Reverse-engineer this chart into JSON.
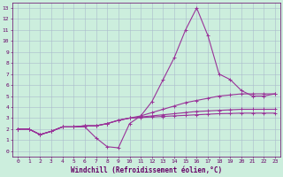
{
  "xlabel": "Windchill (Refroidissement éolien,°C)",
  "bg_color": "#cceedd",
  "grid_color": "#aabbcc",
  "line_color": "#993399",
  "xlim": [
    -0.5,
    23.5
  ],
  "ylim": [
    -0.5,
    13.5
  ],
  "xticks": [
    0,
    1,
    2,
    3,
    4,
    5,
    6,
    7,
    8,
    9,
    10,
    11,
    12,
    13,
    14,
    15,
    16,
    17,
    18,
    19,
    20,
    21,
    22,
    23
  ],
  "yticks": [
    0,
    1,
    2,
    3,
    4,
    5,
    6,
    7,
    8,
    9,
    10,
    11,
    12,
    13
  ],
  "series": [
    [
      2.0,
      2.0,
      1.5,
      1.8,
      2.2,
      2.2,
      2.2,
      1.2,
      0.4,
      0.3,
      2.5,
      3.2,
      4.5,
      6.5,
      8.5,
      11.0,
      13.0,
      10.5,
      7.0,
      6.5,
      5.5,
      5.0,
      5.0,
      5.2
    ],
    [
      2.0,
      2.0,
      1.5,
      1.8,
      2.2,
      2.2,
      2.3,
      2.3,
      2.5,
      2.8,
      3.0,
      3.2,
      3.5,
      3.8,
      4.1,
      4.4,
      4.6,
      4.8,
      5.0,
      5.1,
      5.2,
      5.2,
      5.2,
      5.2
    ],
    [
      2.0,
      2.0,
      1.5,
      1.8,
      2.2,
      2.2,
      2.3,
      2.3,
      2.5,
      2.8,
      3.0,
      3.1,
      3.2,
      3.3,
      3.4,
      3.5,
      3.6,
      3.65,
      3.7,
      3.75,
      3.8,
      3.8,
      3.8,
      3.8
    ],
    [
      2.0,
      2.0,
      1.5,
      1.8,
      2.2,
      2.2,
      2.3,
      2.3,
      2.5,
      2.8,
      3.0,
      3.05,
      3.1,
      3.15,
      3.2,
      3.25,
      3.3,
      3.35,
      3.4,
      3.42,
      3.45,
      3.45,
      3.45,
      3.45
    ]
  ],
  "marker": "+",
  "markersize": 3,
  "linewidth": 0.8,
  "font_color": "#660066",
  "tick_fontsize": 4.5,
  "xlabel_fontsize": 5.5,
  "xlabel_fontweight": "bold"
}
